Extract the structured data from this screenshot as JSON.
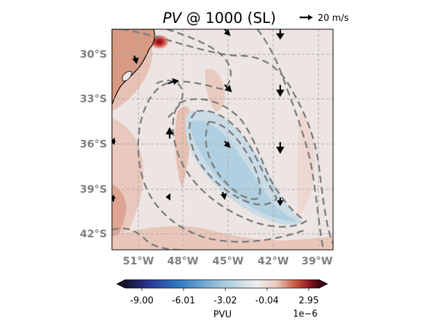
{
  "title": {
    "var": "PV",
    "rest": " @ 1000 (SL)"
  },
  "quiver_key": {
    "label": "20 m/s"
  },
  "map": {
    "lat_ticks": [
      "30°S",
      "33°S",
      "36°S",
      "39°S",
      "42°S"
    ],
    "lon_ticks": [
      "51°W",
      "48°W",
      "45°W",
      "42°W",
      "39°W"
    ],
    "grid": true,
    "contour_style": "dashed gray",
    "coastline": true
  },
  "colorbar": {
    "ticks": [
      "-9.00",
      "-6.01",
      "-3.02",
      "-0.04",
      "2.95"
    ],
    "label": "PVU",
    "exponent": "1e−6",
    "colormap": [
      "#15132b",
      "#2f3a9e",
      "#2f7bc4",
      "#8fc1d9",
      "#eeeeee",
      "#f3e1dc",
      "#d9826a",
      "#a8292c",
      "#3d0915"
    ],
    "extend": "both"
  },
  "colors": {
    "land": "#d98f76",
    "background": "#ede5e3",
    "negative_band": "#a9cbe0",
    "positive_peak": "#b01e22"
  }
}
